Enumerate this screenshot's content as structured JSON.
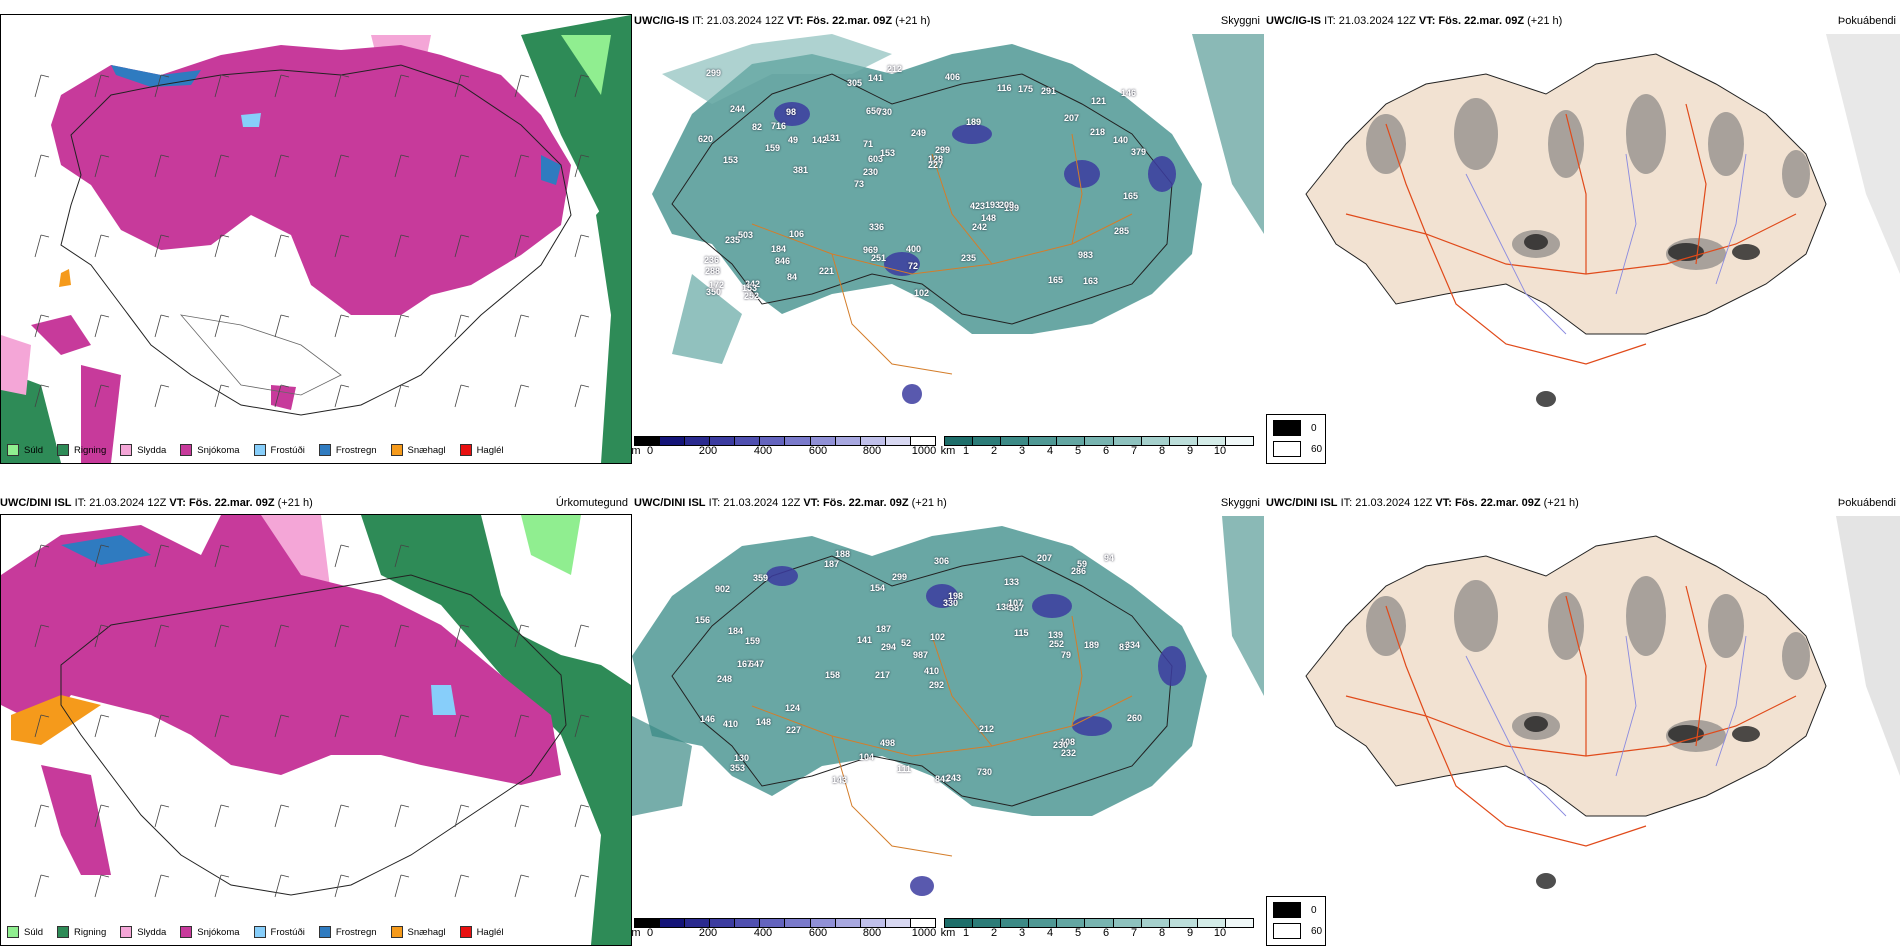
{
  "header": {
    "it_label": "IT:",
    "vt_label": "VT:"
  },
  "rows": [
    {
      "model": "UWC/IG-IS",
      "it": "21.03.2024 12Z",
      "vt": "Fös. 22.mar. 09Z",
      "lead": "(+21 h)"
    },
    {
      "model": "UWC/DINI ISL",
      "it": "21.03.2024 12Z",
      "vt": "Fös. 22.mar. 09Z",
      "lead": "(+21 h)"
    }
  ],
  "params": {
    "precip": "Úrkomutegund",
    "cloud": "Skyggni",
    "fog": "Þokuábendi"
  },
  "precip_legend": [
    {
      "label": "Súld",
      "color": "#90ee90"
    },
    {
      "label": "Rigning",
      "color": "#2e8b57"
    },
    {
      "label": "Slydda",
      "color": "#f4a6d7"
    },
    {
      "label": "Snjókoma",
      "color": "#c73a9b"
    },
    {
      "label": "Frostúði",
      "color": "#87cefa"
    },
    {
      "label": "Frostregn",
      "color": "#2f7bc0"
    },
    {
      "label": "Snæhagl",
      "color": "#f59a1b"
    },
    {
      "label": "Haglél",
      "color": "#e81010"
    }
  ],
  "height_scale": {
    "unit": "m",
    "ticks": [
      "0",
      "200",
      "400",
      "600",
      "800",
      "1000"
    ],
    "colors": [
      "#000000",
      "#141478",
      "#2a2a8f",
      "#3c3ca0",
      "#5050b0",
      "#6464be",
      "#7a7acb",
      "#9090d6",
      "#a8a8e0",
      "#c0c0ea",
      "#d8d8f2",
      "#ffffff"
    ]
  },
  "vis_scale": {
    "unit": "km",
    "ticks": [
      "1",
      "2",
      "3",
      "4",
      "5",
      "6",
      "7",
      "8",
      "9",
      "10"
    ],
    "colors": [
      "#1e6e6a",
      "#2c7c78",
      "#3c8a86",
      "#4f9894",
      "#63a6a2",
      "#78b4b0",
      "#8ec2be",
      "#a5d0cc",
      "#bcdeda",
      "#d4ece8",
      "#f0f8f8"
    ]
  },
  "fog_legend": [
    {
      "label": "0",
      "color": "#000000"
    },
    {
      "label": "60",
      "color": "#ffffff"
    }
  ],
  "cloud_labels_top": [
    "163",
    "153",
    "121",
    "73",
    "189",
    "242",
    "656",
    "249",
    "503",
    "131",
    "288",
    "846",
    "730",
    "299",
    "199",
    "244",
    "141",
    "379",
    "423",
    "218",
    "230",
    "969",
    "603",
    "98",
    "116",
    "106",
    "165",
    "983",
    "209",
    "102",
    "142",
    "159",
    "242",
    "84",
    "140",
    "128",
    "172",
    "251",
    "227",
    "235",
    "207",
    "146",
    "148",
    "235",
    "184",
    "252",
    "350",
    "400",
    "291",
    "212",
    "381",
    "620",
    "716",
    "175",
    "153",
    "406",
    "305",
    "153",
    "285",
    "336",
    "221",
    "193",
    "49",
    "236",
    "299",
    "82",
    "165",
    "71",
    "72"
  ],
  "cloud_labels_bottom": [
    "188",
    "133",
    "81",
    "217",
    "292",
    "647",
    "902",
    "138",
    "248",
    "330",
    "987",
    "353",
    "187",
    "158",
    "843",
    "243",
    "498",
    "207",
    "115",
    "124",
    "159",
    "167",
    "334",
    "189",
    "146",
    "184",
    "294",
    "252",
    "108",
    "410",
    "230",
    "198",
    "148",
    "141",
    "212",
    "260",
    "139",
    "104",
    "94",
    "299",
    "130",
    "143",
    "730",
    "359",
    "111",
    "587",
    "232",
    "107",
    "156",
    "410",
    "154",
    "79",
    "102",
    "286",
    "306",
    "227",
    "187",
    "52",
    "59"
  ]
}
